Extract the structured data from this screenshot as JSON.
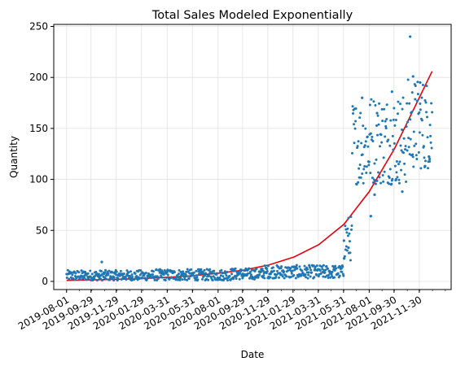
{
  "chart_data": {
    "type": "scatter",
    "title": "Total Sales Modeled Exponentially",
    "xlabel": "Date",
    "ylabel": "Quantity",
    "x_type": "date",
    "xlim": [
      "2019-07-01",
      "2022-02-15"
    ],
    "ylim": [
      -8,
      252
    ],
    "grid": true,
    "legend": "none",
    "x_ticks": [
      "2019-08-01",
      "2019-09-29",
      "2019-11-29",
      "2020-01-29",
      "2020-03-31",
      "2020-05-31",
      "2020-08-01",
      "2020-09-29",
      "2020-11-29",
      "2021-01-29",
      "2021-03-31",
      "2021-05-31",
      "2021-08-01",
      "2021-09-30",
      "2021-11-30"
    ],
    "y_ticks": [
      0,
      50,
      100,
      150,
      200,
      250
    ],
    "colors": {
      "points": "#1f77b4",
      "fit": "#e8000b",
      "grid": "#e0e0e0"
    },
    "series": [
      {
        "type": "scatter",
        "color": "#1f77b4",
        "segments": [
          {
            "from": "2019-08-01",
            "to": "2020-02-28",
            "low": 1,
            "high": 11
          },
          {
            "from": "2020-03-01",
            "to": "2020-08-31",
            "low": 1,
            "high": 12
          },
          {
            "from": "2020-09-01",
            "to": "2020-11-15",
            "low": 2,
            "high": 13
          },
          {
            "from": "2020-11-16",
            "to": "2020-12-31",
            "low": 3,
            "high": 16
          },
          {
            "from": "2021-01-01",
            "to": "2021-05-31",
            "low": 3,
            "high": 16
          },
          {
            "from": "2021-06-01",
            "to": "2021-06-20",
            "low": 20,
            "high": 65
          },
          {
            "from": "2021-06-21",
            "to": "2021-07-31",
            "low": 95,
            "high": 180
          },
          {
            "from": "2021-08-01",
            "to": "2021-10-31",
            "low": 95,
            "high": 185
          },
          {
            "from": "2021-11-01",
            "to": "2021-12-31",
            "low": 110,
            "high": 200
          }
        ],
        "points": [
          {
            "x": "2019-10-25",
            "y": 19
          },
          {
            "x": "2021-06-01",
            "y": 40
          },
          {
            "x": "2021-06-12",
            "y": 33
          },
          {
            "x": "2021-07-15",
            "y": 180
          },
          {
            "x": "2021-08-05",
            "y": 64
          },
          {
            "x": "2021-08-14",
            "y": 85
          },
          {
            "x": "2021-08-20",
            "y": 165
          },
          {
            "x": "2021-09-25",
            "y": 186
          },
          {
            "x": "2021-10-05",
            "y": 100
          },
          {
            "x": "2021-10-20",
            "y": 88
          },
          {
            "x": "2021-11-08",
            "y": 240
          },
          {
            "x": "2021-11-15",
            "y": 201
          },
          {
            "x": "2021-12-02",
            "y": 195
          },
          {
            "x": "2021-12-14",
            "y": 113
          },
          {
            "x": "2021-12-25",
            "y": 120
          }
        ]
      },
      {
        "type": "line",
        "color": "#e8000b",
        "model": "exponential",
        "x": [
          "2019-08-01",
          "2019-10-01",
          "2019-12-01",
          "2020-02-01",
          "2020-04-01",
          "2020-06-01",
          "2020-08-01",
          "2020-10-01",
          "2020-12-01",
          "2021-02-01",
          "2021-04-01",
          "2021-06-01",
          "2021-08-01",
          "2021-10-01",
          "2021-12-31"
        ],
        "y": [
          1,
          1.5,
          2,
          2.8,
          4,
          5.5,
          8,
          11,
          16,
          24,
          36,
          56,
          88,
          130,
          206
        ]
      }
    ]
  }
}
